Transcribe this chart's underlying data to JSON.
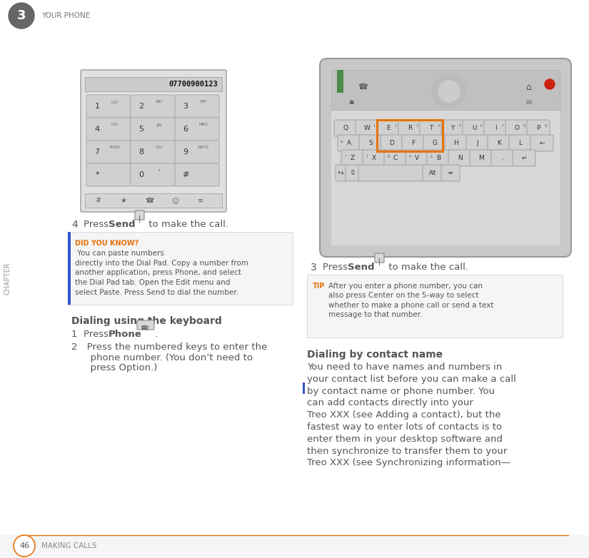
{
  "bg_color": "#ffffff",
  "header_chapter_num": "3",
  "header_chapter_text": "YOUR PHONE",
  "chapter_label": "CHAPTER",
  "footer_page_num": "46",
  "footer_text": "MAKING CALLS",
  "orange_color": "#E8720C",
  "gray_dark": "#555555",
  "gray_medium": "#888888",
  "gray_light": "#eeeeee",
  "gray_bg": "#f0f0f0",
  "blue_accent": "#3355CC",
  "did_you_know_label": "DID YOU KNOW?",
  "tip_label": "TIP",
  "section1_title": "Dialing using the keyboard",
  "section2_title": "Dialing by contact name",
  "section2_body": "You need to have names and numbers in\nyour contact list before you can make a call\nby contact name or phone number. You\ncan add contacts directly into your\nTreo XXX (see Adding a contact), but the\nfastest way to enter lots of contacts is to\nenter them in your desktop software and\nthen synchronize to transfer them to your\nTreo XXX (see Synchronizing information—",
  "dial_number": "07700900123",
  "keyboard_highlight_color": "#E8720C"
}
